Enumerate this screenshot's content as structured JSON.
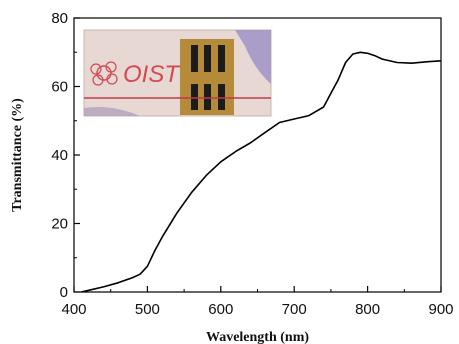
{
  "chart_data": {
    "type": "line",
    "xlabel": "Wavelength (nm)",
    "ylabel": "Transmittance (%)",
    "xlim": [
      400,
      900
    ],
    "ylim": [
      0,
      80
    ],
    "xticks": [
      400,
      500,
      600,
      700,
      800,
      900
    ],
    "yticks": [
      0,
      20,
      40,
      60,
      80
    ],
    "grid": false,
    "series": [
      {
        "x": [
          410,
          420,
          440,
          460,
          480,
          490,
          500,
          510,
          520,
          540,
          560,
          580,
          600,
          620,
          640,
          660,
          680,
          700,
          720,
          740,
          750,
          760,
          770,
          780,
          790,
          800,
          810,
          820,
          840,
          860,
          880,
          900
        ],
        "y": [
          0,
          0.5,
          1.5,
          2.7,
          4.2,
          5.2,
          7.5,
          12,
          16,
          23,
          29,
          34,
          38,
          41,
          43.5,
          46.5,
          49.5,
          50.5,
          51.5,
          54,
          58,
          62,
          67,
          69.5,
          70,
          69.7,
          69,
          68,
          67,
          66.8,
          67.2,
          67.5
        ],
        "color": "#000000"
      }
    ],
    "inset": {
      "type": "photo",
      "text": "OIST"
    }
  }
}
